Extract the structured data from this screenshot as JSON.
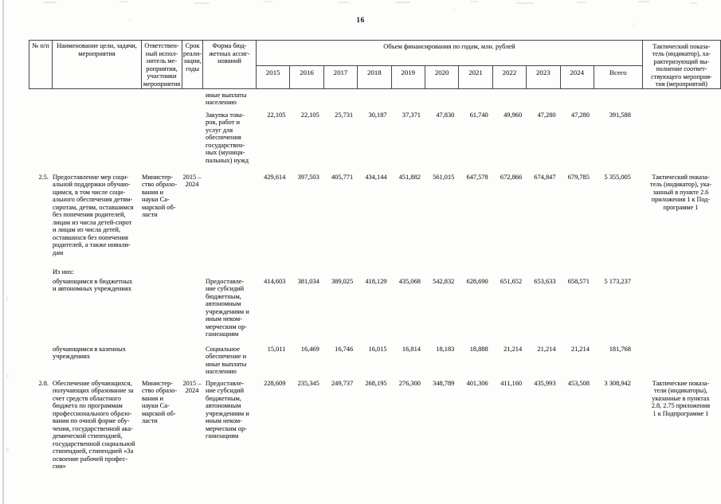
{
  "page": {
    "number": "16"
  },
  "table": {
    "header": {
      "col_num": "№ п/п",
      "col_name": "Наименование цели, задачи,\nмероприятия",
      "col_resp": "Ответствен-\nный испол-\nнитель ме-\nроприятия,\nучастники\nмероприятия",
      "col_term": "Срок\nреали-\nзации,\nгоды",
      "col_form": "Форма бюд-\nжетных ассиг-\nнований",
      "col_volume": "Объем финансирования по годам, млн. рублей",
      "years": [
        "2015",
        "2016",
        "2017",
        "2018",
        "2019",
        "2020",
        "2021",
        "2022",
        "2023",
        "2024",
        "Всего"
      ],
      "col_indicator": "Тактический показа-\nтель (индикатор), ха-\nрактеризующий вы-\nполнение соответ-\nствующего мероприя-\nтия (мероприятий)"
    },
    "rows": [
      {
        "form": "иные выплаты\nнаселению"
      },
      {
        "form": "Закупка това-\nров, работ и\nуслуг для\nобеспечения\nгосударствен-\nных (муници-\nпальных) нужд",
        "values": [
          "22,105",
          "22,105",
          "25,731",
          "30,187",
          "37,371",
          "47,830",
          "61,740",
          "49,960",
          "47,280",
          "47,280",
          "391,588"
        ]
      },
      {
        "num": "2.5.",
        "name": "Предоставление мер соци-\nальной поддержки обучаю-\nщимся, в том числе соци-\nального обеспечения детям-\nсиротам, детям, оставшимся\nбез попечения родителей,\nлицам из числа детей-сирот\nи лицам из числа детей,\nоставшихся без попечения\nродителей, а также инвали-\nдам",
        "resp": "Министер-\nство образо-\nвания и\nнауки Са-\nмарской об-\nласти",
        "term": "2015 –\n2024",
        "values": [
          "429,614",
          "397,503",
          "405,771",
          "434,144",
          "451,882",
          "561,015",
          "647,578",
          "672,866",
          "674,847",
          "679,785",
          "5 355,005"
        ],
        "indicator": "Тактический показа-\nтель (индикатор), ука-\nзанный в пункте 2.6\nприложения 1 к Под-\nпрограмме 1"
      },
      {
        "name": "Из них:"
      },
      {
        "name": "обучающимся в бюджетных\nи автономных учреждениях",
        "form": "Предоставле-\nние субсидий\nбюджетным,\nавтономным\nучреждениям и\nиным неком-\nмерческим ор-\nганизациям",
        "values": [
          "414,603",
          "381,034",
          "389,025",
          "418,129",
          "435,068",
          "542,832",
          "628,690",
          "651,652",
          "653,633",
          "658,571",
          "5 173,237"
        ]
      },
      {
        "name": "обучающимся в казенных\nучреждениях",
        "form": "Социальное\nобеспечение и\nиные выплаты\nнаселению",
        "values": [
          "15,011",
          "16,469",
          "16,746",
          "16,015",
          "16,814",
          "18,183",
          "18,888",
          "21,214",
          "21,214",
          "21,214",
          "181,768"
        ]
      },
      {
        "num": "2.8.",
        "name": "Обеспечение обучающихся,\nполучающих образование за\nсчет средств областного\nбюджета по программам\nпрофессионального образо-\nвания по очной форме обу-\nчения, государственной ака-\nдемической стипендией,\nгосударственной социальной\nстипендией, стипендией «За\nосвоение рабочей профес-\nсии»",
        "resp": "Министер-\nство образо-\nвания и\nнауки Са-\nмарской об-\nласти",
        "term": "2015 –\n2024",
        "form": "Предоставле-\nние субсидий\nбюджетным,\nавтономным\nучреждениям и\nиным неком-\nмерческим ор-\nганизациям",
        "values": [
          "228,609",
          "235,345",
          "249,737",
          "268,195",
          "276,300",
          "348,789",
          "401,306",
          "411,160",
          "435,993",
          "453,508",
          "3 308,942"
        ],
        "indicator": "Тактические показа-\nтели (индикаторы),\nуказанные в пунктах\n2.8, 2.75 приложения\n1 к Подпрограмме 1"
      }
    ]
  }
}
